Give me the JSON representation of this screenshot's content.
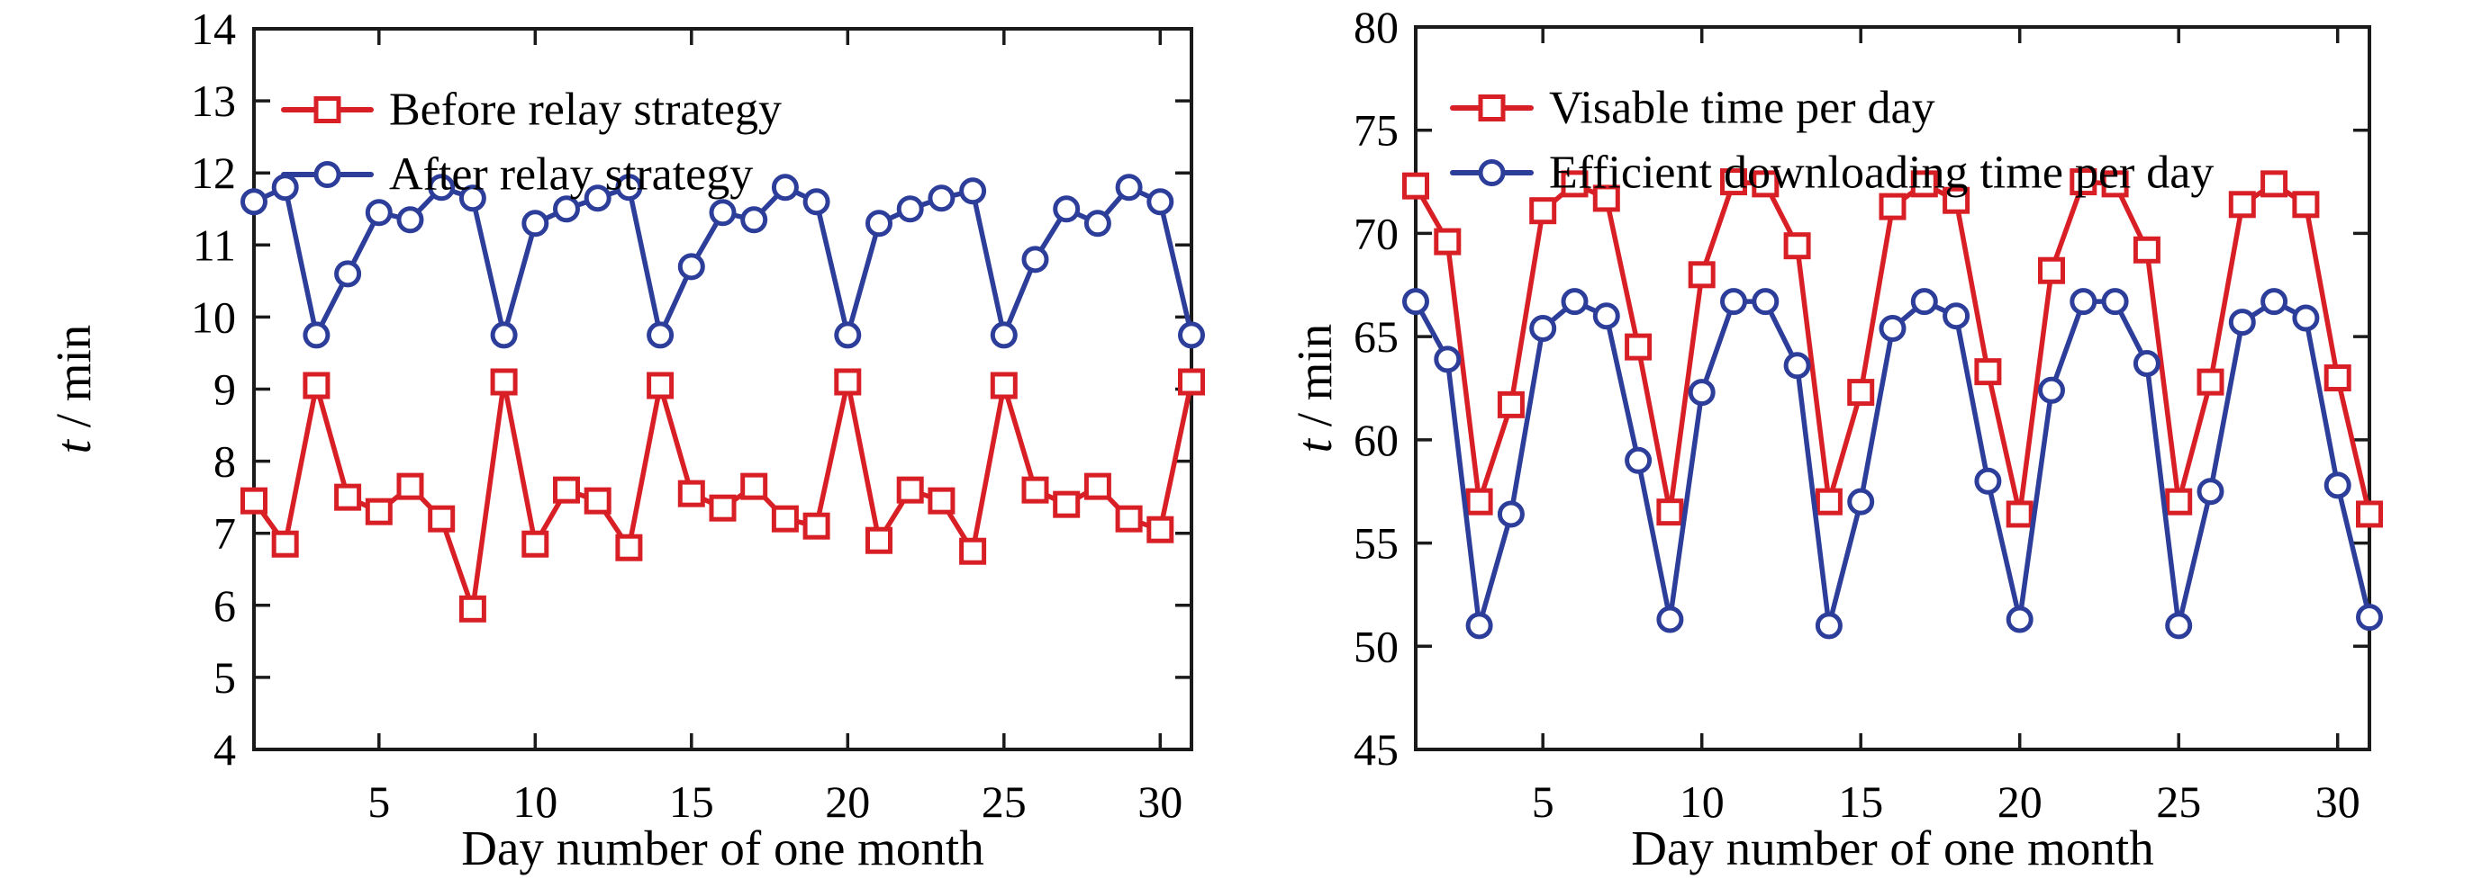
{
  "page": {
    "background": "#ffffff"
  },
  "colors": {
    "red": "#d91f26",
    "blue": "#2c3e9a",
    "axis": "#1a1a1a",
    "text": "#000000",
    "marker_fill": "#ffffff"
  },
  "chart_data": [
    {
      "name": "relay-strategy-chart",
      "type": "line",
      "title": "",
      "xlabel": "Day number of one month",
      "ylabel": {
        "italic": "t",
        "normal": " / min"
      },
      "xlim": [
        1,
        31
      ],
      "ylim": [
        4,
        14
      ],
      "xticks": [
        5,
        10,
        15,
        20,
        25,
        30
      ],
      "yticks": [
        4,
        5,
        6,
        7,
        8,
        9,
        10,
        11,
        12,
        13,
        14
      ],
      "grid": false,
      "legend_position": "top-left-inside",
      "x": [
        1,
        2,
        3,
        4,
        5,
        6,
        7,
        8,
        9,
        10,
        11,
        12,
        13,
        14,
        15,
        16,
        17,
        18,
        19,
        20,
        21,
        22,
        23,
        24,
        25,
        26,
        27,
        28,
        29,
        30,
        31
      ],
      "series": [
        {
          "name": "Before relay strategy",
          "color": "#d91f26",
          "marker": "square",
          "values": [
            7.45,
            6.85,
            9.05,
            7.5,
            7.3,
            7.65,
            7.2,
            5.95,
            9.1,
            6.85,
            7.6,
            7.45,
            6.8,
            9.05,
            7.55,
            7.35,
            7.65,
            7.2,
            7.1,
            9.1,
            6.9,
            7.6,
            7.45,
            6.75,
            9.05,
            7.6,
            7.4,
            7.65,
            7.2,
            7.05,
            9.1
          ]
        },
        {
          "name": "After relay strategy",
          "color": "#2c3e9a",
          "marker": "circle",
          "values": [
            11.6,
            11.8,
            9.75,
            10.6,
            11.45,
            11.35,
            11.8,
            11.65,
            9.75,
            11.3,
            11.5,
            11.65,
            11.8,
            9.75,
            10.7,
            11.45,
            11.35,
            11.8,
            11.6,
            9.75,
            11.3,
            11.5,
            11.65,
            11.75,
            9.75,
            10.8,
            11.5,
            11.3,
            11.8,
            11.6,
            9.75
          ]
        }
      ]
    },
    {
      "name": "download-time-chart",
      "type": "line",
      "title": "",
      "xlabel": "Day number of one month",
      "ylabel": {
        "italic": "t",
        "normal": " / min"
      },
      "xlim": [
        1,
        31
      ],
      "ylim": [
        45,
        80
      ],
      "xticks": [
        5,
        10,
        15,
        20,
        25,
        30
      ],
      "yticks": [
        45,
        50,
        55,
        60,
        65,
        70,
        75,
        80
      ],
      "grid": false,
      "legend_position": "top-left-inside",
      "x": [
        1,
        2,
        3,
        4,
        5,
        6,
        7,
        8,
        9,
        10,
        11,
        12,
        13,
        14,
        15,
        16,
        17,
        18,
        19,
        20,
        21,
        22,
        23,
        24,
        25,
        26,
        27,
        28,
        29,
        30,
        31
      ],
      "series": [
        {
          "name": "Visable time per day",
          "color": "#d91f26",
          "marker": "square",
          "values": [
            72.3,
            69.6,
            57.0,
            61.7,
            71.1,
            72.4,
            71.7,
            64.5,
            56.5,
            68.0,
            72.5,
            72.4,
            69.4,
            57.0,
            62.3,
            71.3,
            72.4,
            71.6,
            63.3,
            56.4,
            68.2,
            72.5,
            72.4,
            69.2,
            57.0,
            62.8,
            71.4,
            72.4,
            71.4,
            63.0,
            56.4
          ]
        },
        {
          "name": "Efficient downloading time per day",
          "color": "#2c3e9a",
          "marker": "circle",
          "values": [
            66.7,
            63.9,
            51.0,
            56.4,
            65.4,
            66.7,
            66.0,
            59.0,
            51.3,
            62.3,
            66.7,
            66.7,
            63.6,
            51.0,
            57.0,
            65.4,
            66.7,
            66.0,
            58.0,
            51.3,
            62.4,
            66.7,
            66.7,
            63.7,
            51.0,
            57.5,
            65.7,
            66.7,
            65.9,
            57.8,
            51.4
          ]
        }
      ]
    }
  ]
}
